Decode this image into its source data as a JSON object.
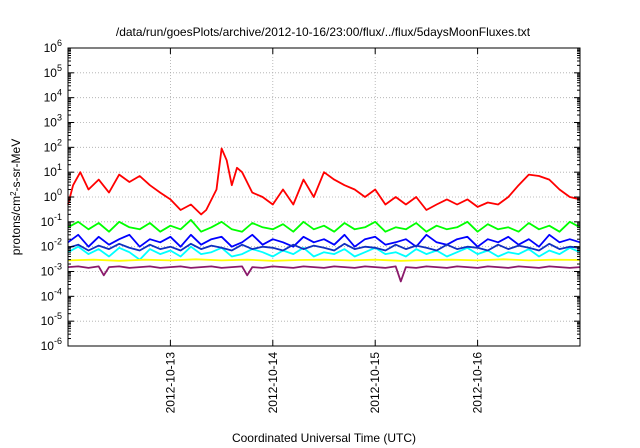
{
  "chart_data": {
    "type": "line",
    "title": "/data/run/goesPlots/archive/2012-10-16/23:00/flux/../flux/5daysMoonFluxes.txt",
    "xlabel": "Coordinated Universal Time (UTC)",
    "ylabel_base": "protons/cm",
    "ylabel_sup": "2",
    "ylabel_rest": "-s-sr-MeV",
    "y_scale": "log",
    "ylim": [
      1e-06,
      1000000
    ],
    "y_ticks": [
      {
        "base": "10",
        "exp": "-6"
      },
      {
        "base": "10",
        "exp": "-5"
      },
      {
        "base": "10",
        "exp": "-4"
      },
      {
        "base": "10",
        "exp": "-3"
      },
      {
        "base": "10",
        "exp": "-2"
      },
      {
        "base": "10",
        "exp": "-1"
      },
      {
        "base": "10",
        "exp": "0"
      },
      {
        "base": "10",
        "exp": "1"
      },
      {
        "base": "10",
        "exp": "2"
      },
      {
        "base": "10",
        "exp": "3"
      },
      {
        "base": "10",
        "exp": "4"
      },
      {
        "base": "10",
        "exp": "5"
      },
      {
        "base": "10",
        "exp": "6"
      }
    ],
    "xlim": [
      "2012-10-12 00:00",
      "2012-10-17 00:00"
    ],
    "x_ticks": [
      "2012-10-13",
      "2012-10-14",
      "2012-10-15",
      "2012-10-16"
    ],
    "grid": true,
    "legend": "none",
    "series": [
      {
        "color": "#ff0000",
        "x_days": [
          0,
          0.05,
          0.12,
          0.2,
          0.3,
          0.4,
          0.5,
          0.6,
          0.7,
          0.8,
          0.9,
          1.0,
          1.1,
          1.2,
          1.3,
          1.35,
          1.45,
          1.5,
          1.55,
          1.6,
          1.65,
          1.7,
          1.8,
          1.9,
          2.0,
          2.1,
          2.2,
          2.3,
          2.4,
          2.5,
          2.6,
          2.7,
          2.8,
          2.9,
          3.0,
          3.1,
          3.2,
          3.3,
          3.4,
          3.5,
          3.6,
          3.7,
          3.8,
          3.9,
          4.0,
          4.1,
          4.2,
          4.3,
          4.4,
          4.5,
          4.6,
          4.7,
          4.8,
          4.9,
          5.0
        ],
        "values": [
          0.5,
          3,
          10,
          2,
          5,
          1.5,
          8,
          4,
          7,
          3,
          1.5,
          0.8,
          0.3,
          0.5,
          0.2,
          0.3,
          2,
          90,
          30,
          3,
          15,
          10,
          1.5,
          1,
          0.5,
          2,
          0.5,
          5,
          1,
          10,
          5,
          3,
          2,
          1,
          2,
          0.5,
          1,
          0.5,
          1,
          0.3,
          0.5,
          0.8,
          0.5,
          0.8,
          0.4,
          0.6,
          0.5,
          1,
          3,
          8,
          7,
          5,
          2,
          1,
          0.8
        ]
      },
      {
        "color": "#00ff00",
        "x_days": [
          0,
          0.1,
          0.2,
          0.3,
          0.4,
          0.5,
          0.6,
          0.7,
          0.8,
          0.9,
          1.0,
          1.1,
          1.2,
          1.3,
          1.4,
          1.5,
          1.6,
          1.7,
          1.8,
          1.9,
          2.0,
          2.1,
          2.2,
          2.3,
          2.4,
          2.5,
          2.6,
          2.7,
          2.8,
          2.9,
          3.0,
          3.1,
          3.2,
          3.3,
          3.4,
          3.5,
          3.6,
          3.7,
          3.8,
          3.9,
          4.0,
          4.1,
          4.2,
          4.3,
          4.4,
          4.5,
          4.6,
          4.7,
          4.8,
          4.9,
          5.0
        ],
        "values": [
          0.06,
          0.1,
          0.05,
          0.09,
          0.04,
          0.1,
          0.06,
          0.05,
          0.09,
          0.04,
          0.07,
          0.05,
          0.12,
          0.04,
          0.06,
          0.1,
          0.05,
          0.04,
          0.09,
          0.06,
          0.05,
          0.08,
          0.04,
          0.1,
          0.05,
          0.07,
          0.04,
          0.09,
          0.05,
          0.06,
          0.1,
          0.04,
          0.06,
          0.05,
          0.09,
          0.04,
          0.07,
          0.05,
          0.06,
          0.1,
          0.04,
          0.08,
          0.05,
          0.06,
          0.04,
          0.09,
          0.05,
          0.07,
          0.04,
          0.1,
          0.06
        ]
      },
      {
        "color": "#00ffff",
        "x_days": [
          0,
          0.1,
          0.2,
          0.3,
          0.4,
          0.5,
          0.6,
          0.7,
          0.8,
          0.9,
          1.0,
          1.1,
          1.2,
          1.3,
          1.4,
          1.5,
          1.6,
          1.7,
          1.8,
          1.9,
          2.0,
          2.1,
          2.2,
          2.3,
          2.4,
          2.5,
          2.6,
          2.7,
          2.8,
          2.9,
          3.0,
          3.1,
          3.2,
          3.3,
          3.4,
          3.5,
          3.6,
          3.7,
          3.8,
          3.9,
          4.0,
          4.1,
          4.2,
          4.3,
          4.4,
          4.5,
          4.6,
          4.7,
          4.8,
          4.9,
          5.0
        ],
        "values": [
          0.006,
          0.01,
          0.005,
          0.008,
          0.004,
          0.009,
          0.006,
          0.003,
          0.008,
          0.005,
          0.007,
          0.004,
          0.01,
          0.005,
          0.006,
          0.009,
          0.004,
          0.005,
          0.008,
          0.006,
          0.004,
          0.007,
          0.005,
          0.009,
          0.004,
          0.006,
          0.005,
          0.008,
          0.004,
          0.006,
          0.009,
          0.005,
          0.006,
          0.004,
          0.008,
          0.005,
          0.007,
          0.004,
          0.006,
          0.009,
          0.005,
          0.007,
          0.004,
          0.006,
          0.005,
          0.008,
          0.004,
          0.007,
          0.005,
          0.009,
          0.006
        ]
      },
      {
        "color": "#0000ff",
        "x_days": [
          0,
          0.1,
          0.2,
          0.3,
          0.4,
          0.5,
          0.6,
          0.7,
          0.8,
          0.9,
          1.0,
          1.1,
          1.2,
          1.3,
          1.4,
          1.5,
          1.6,
          1.7,
          1.8,
          1.9,
          2.0,
          2.1,
          2.2,
          2.3,
          2.4,
          2.5,
          2.6,
          2.7,
          2.8,
          2.9,
          3.0,
          3.1,
          3.2,
          3.3,
          3.4,
          3.5,
          3.6,
          3.7,
          3.8,
          3.9,
          4.0,
          4.1,
          4.2,
          4.3,
          4.4,
          4.5,
          4.6,
          4.7,
          4.8,
          4.9,
          5.0
        ],
        "values": [
          0.015,
          0.03,
          0.01,
          0.025,
          0.012,
          0.02,
          0.03,
          0.01,
          0.02,
          0.015,
          0.025,
          0.01,
          0.03,
          0.012,
          0.02,
          0.025,
          0.01,
          0.015,
          0.03,
          0.012,
          0.02,
          0.015,
          0.01,
          0.025,
          0.015,
          0.02,
          0.012,
          0.03,
          0.01,
          0.02,
          0.025,
          0.012,
          0.015,
          0.02,
          0.01,
          0.03,
          0.015,
          0.012,
          0.02,
          0.025,
          0.01,
          0.02,
          0.015,
          0.025,
          0.012,
          0.02,
          0.01,
          0.03,
          0.015,
          0.02,
          0.015
        ]
      },
      {
        "color": "#1030c0",
        "x_days": [
          0,
          0.1,
          0.2,
          0.3,
          0.4,
          0.5,
          0.6,
          0.7,
          0.8,
          0.9,
          1.0,
          1.1,
          1.2,
          1.3,
          1.4,
          1.5,
          1.6,
          1.7,
          1.8,
          1.9,
          2.0,
          2.1,
          2.2,
          2.3,
          2.4,
          2.5,
          2.6,
          2.7,
          2.8,
          2.9,
          3.0,
          3.1,
          3.2,
          3.3,
          3.4,
          3.5,
          3.6,
          3.7,
          3.8,
          3.9,
          4.0,
          4.1,
          4.2,
          4.3,
          4.4,
          4.5,
          4.6,
          4.7,
          4.8,
          4.9,
          5.0
        ],
        "values": [
          0.009,
          0.012,
          0.007,
          0.011,
          0.008,
          0.013,
          0.009,
          0.007,
          0.012,
          0.008,
          0.01,
          0.007,
          0.013,
          0.008,
          0.011,
          0.009,
          0.007,
          0.012,
          0.008,
          0.01,
          0.009,
          0.007,
          0.012,
          0.008,
          0.011,
          0.009,
          0.007,
          0.013,
          0.008,
          0.01,
          0.009,
          0.007,
          0.012,
          0.008,
          0.011,
          0.009,
          0.007,
          0.012,
          0.008,
          0.01,
          0.009,
          0.007,
          0.012,
          0.008,
          0.011,
          0.009,
          0.007,
          0.013,
          0.008,
          0.01,
          0.009
        ]
      },
      {
        "color": "#ffff00",
        "x_days": [
          0,
          0.25,
          0.5,
          0.75,
          1.0,
          1.25,
          1.5,
          1.75,
          2.0,
          2.25,
          2.5,
          2.75,
          3.0,
          3.25,
          3.5,
          3.75,
          4.0,
          4.25,
          4.5,
          4.75,
          5.0
        ],
        "values": [
          0.0028,
          0.003,
          0.0027,
          0.003,
          0.0028,
          0.0031,
          0.0028,
          0.003,
          0.0027,
          0.0029,
          0.003,
          0.0028,
          0.003,
          0.0027,
          0.0029,
          0.003,
          0.0028,
          0.0031,
          0.0028,
          0.003,
          0.0029
        ]
      },
      {
        "color": "#8b1a6b",
        "x_days": [
          0,
          0.1,
          0.2,
          0.3,
          0.35,
          0.4,
          0.5,
          0.6,
          0.7,
          0.8,
          0.9,
          1.0,
          1.1,
          1.2,
          1.3,
          1.4,
          1.5,
          1.6,
          1.7,
          1.75,
          1.8,
          1.9,
          2.0,
          2.1,
          2.2,
          2.3,
          2.4,
          2.5,
          2.6,
          2.7,
          2.8,
          2.9,
          3.0,
          3.1,
          3.2,
          3.25,
          3.3,
          3.4,
          3.5,
          3.6,
          3.7,
          3.8,
          3.9,
          4.0,
          4.1,
          4.2,
          4.3,
          4.4,
          4.5,
          4.6,
          4.7,
          4.8,
          4.9,
          5.0
        ],
        "values": [
          0.0015,
          0.0016,
          0.0014,
          0.0016,
          0.0007,
          0.0015,
          0.0016,
          0.0014,
          0.0015,
          0.0016,
          0.0014,
          0.0015,
          0.0016,
          0.0014,
          0.0015,
          0.0016,
          0.0014,
          0.0015,
          0.0016,
          0.0007,
          0.0015,
          0.0014,
          0.0016,
          0.0015,
          0.0014,
          0.0016,
          0.0015,
          0.0014,
          0.0016,
          0.0015,
          0.0014,
          0.0016,
          0.0015,
          0.0014,
          0.0016,
          0.0004,
          0.0015,
          0.0014,
          0.0016,
          0.0015,
          0.0014,
          0.0016,
          0.0015,
          0.0014,
          0.0016,
          0.0015,
          0.0014,
          0.0016,
          0.0015,
          0.0014,
          0.0016,
          0.0015,
          0.0014,
          0.0015
        ]
      }
    ]
  }
}
